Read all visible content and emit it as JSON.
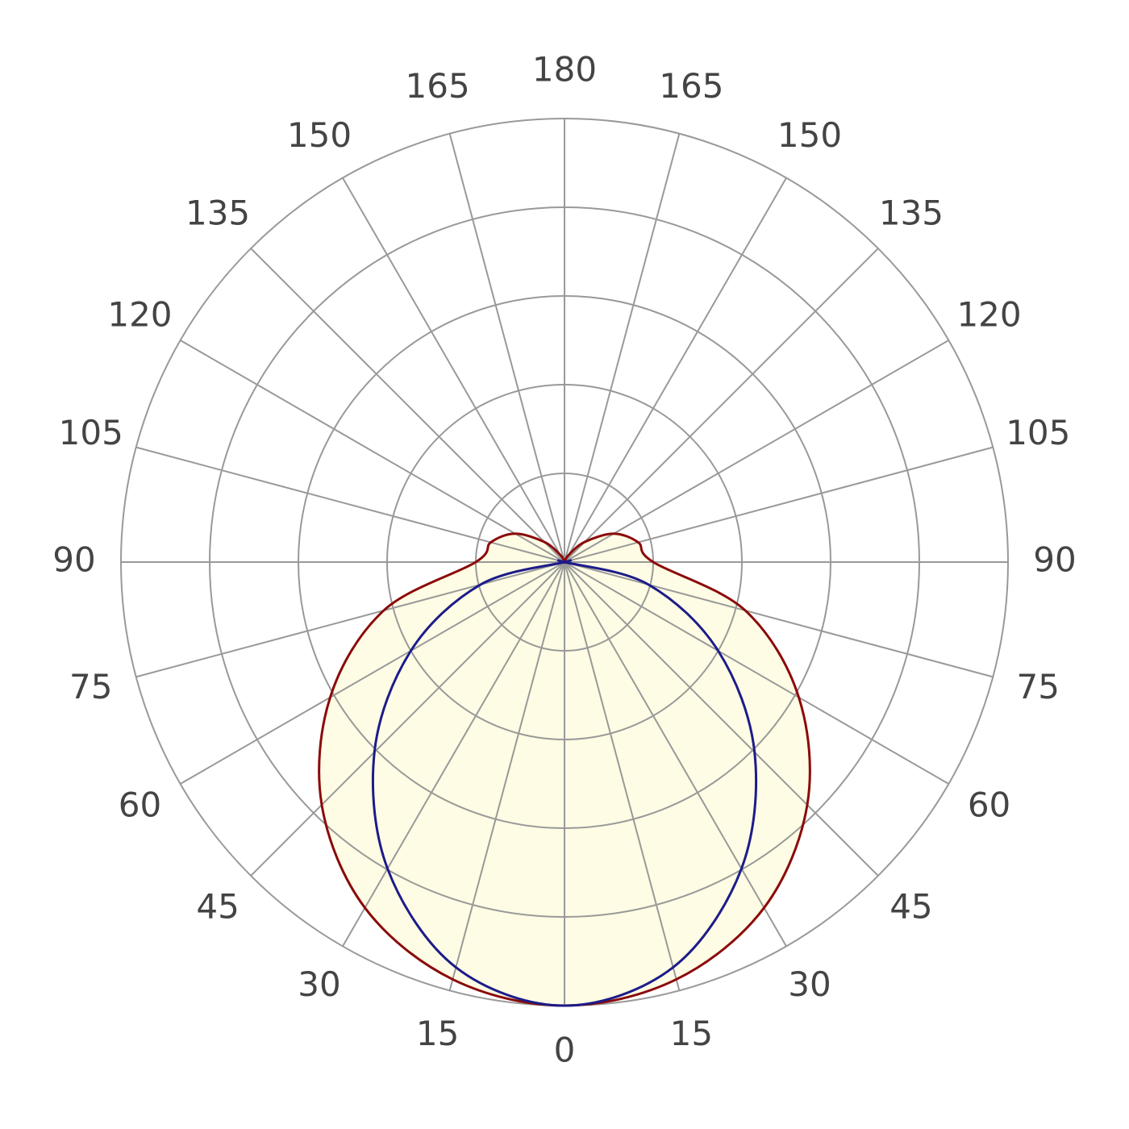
{
  "chart_data": {
    "type": "polar",
    "theta": [
      0,
      15,
      30,
      45,
      60,
      75,
      90,
      105,
      120,
      135,
      150,
      165,
      180,
      195,
      210,
      225,
      240,
      255,
      270,
      285,
      300,
      315,
      330,
      345
    ],
    "thetaticks": [
      0,
      15,
      30,
      45,
      60,
      75,
      90,
      105,
      120,
      135,
      150,
      165,
      180,
      {
        "value": 195,
        "label": "165"
      },
      {
        "value": 210,
        "label": "150"
      },
      {
        "value": 225,
        "label": "135"
      },
      {
        "value": 240,
        "label": "120"
      },
      {
        "value": 255,
        "label": "105"
      },
      {
        "value": 270,
        "label": "90"
      },
      {
        "value": 285,
        "label": "75"
      },
      {
        "value": 300,
        "label": "60"
      },
      {
        "value": 315,
        "label": "45"
      },
      {
        "value": 330,
        "label": "30"
      },
      {
        "value": 345,
        "label": "15"
      }
    ],
    "rlim": [
      0,
      500
    ],
    "rticks": [
      100,
      200,
      300,
      400,
      500
    ],
    "grid": true,
    "fill_color": "#fefce4",
    "series": [
      {
        "color": "#8b0a0a",
        "values": [
          500,
          487,
          450,
          387,
          305,
          211,
          100,
          86,
          64,
          32,
          9,
          0,
          0,
          0,
          9,
          32,
          64,
          86,
          100,
          211,
          305,
          387,
          450,
          487
        ]
      },
      {
        "color": "#1c1c8a",
        "values": [
          500,
          473,
          399,
          303,
          200,
          98,
          0,
          0,
          0,
          0,
          0,
          0,
          0,
          0,
          0,
          0,
          0,
          0,
          0,
          98,
          200,
          303,
          399,
          473
        ]
      }
    ]
  }
}
